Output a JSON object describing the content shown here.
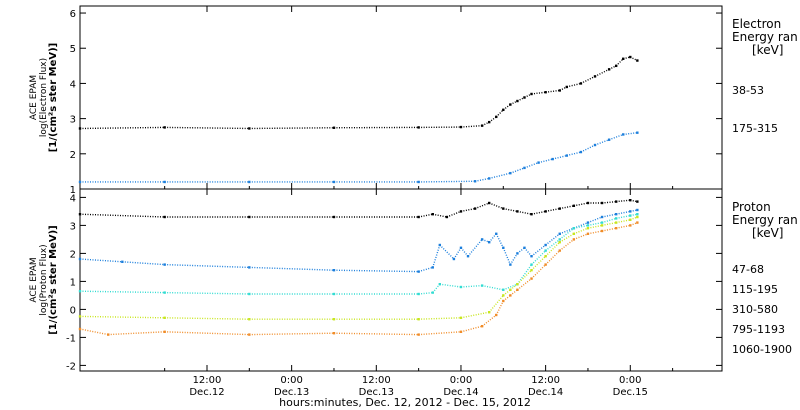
{
  "chart_data": [
    {
      "type": "scatter",
      "ylabel_lines": [
        "ACE EPAM",
        "log(Electron Flux)",
        "[1/(cm²s ster MeV)]"
      ],
      "ylim": [
        1,
        6.2
      ],
      "yticks": [
        "1",
        "2",
        "3",
        "4",
        "5",
        "6"
      ],
      "legend_title": [
        "Electron",
        "Energy ran",
        "[keV]"
      ],
      "series": [
        {
          "name": "38-53",
          "color": "#000000",
          "points": [
            [
              0,
              2.72
            ],
            [
              12,
              2.75
            ],
            [
              24,
              2.72
            ],
            [
              36,
              2.74
            ],
            [
              48,
              2.75
            ],
            [
              54,
              2.76
            ],
            [
              57,
              2.8
            ],
            [
              58,
              2.9
            ],
            [
              59,
              3.05
            ],
            [
              60,
              3.25
            ],
            [
              61,
              3.4
            ],
            [
              62,
              3.5
            ],
            [
              63,
              3.6
            ],
            [
              64,
              3.7
            ],
            [
              66,
              3.75
            ],
            [
              68,
              3.8
            ],
            [
              69,
              3.9
            ],
            [
              71,
              4.0
            ],
            [
              73,
              4.2
            ],
            [
              75,
              4.4
            ],
            [
              76,
              4.5
            ],
            [
              77,
              4.7
            ],
            [
              78,
              4.75
            ],
            [
              79,
              4.65
            ]
          ]
        },
        {
          "name": "175-315",
          "color": "#1c7fdc",
          "points": [
            [
              0,
              1.2
            ],
            [
              12,
              1.2
            ],
            [
              24,
              1.2
            ],
            [
              36,
              1.2
            ],
            [
              48,
              1.2
            ],
            [
              56,
              1.22
            ],
            [
              58,
              1.3
            ],
            [
              61,
              1.45
            ],
            [
              63,
              1.6
            ],
            [
              65,
              1.75
            ],
            [
              67,
              1.85
            ],
            [
              69,
              1.95
            ],
            [
              71,
              2.05
            ],
            [
              73,
              2.25
            ],
            [
              75,
              2.4
            ],
            [
              77,
              2.55
            ],
            [
              79,
              2.6
            ]
          ]
        }
      ]
    },
    {
      "type": "scatter",
      "ylabel_lines": [
        "ACE EPAM",
        "log(Proton Flux)",
        "[1/(cm²s ster MeV)]"
      ],
      "ylim": [
        -2.2,
        4.3
      ],
      "yticks": [
        "-2",
        "-1",
        "0",
        "1",
        "2",
        "3",
        "4"
      ],
      "legend_title": [
        "Proton",
        "Energy ran",
        "[keV]"
      ],
      "series": [
        {
          "name": "47-68",
          "color": "#000000",
          "points": [
            [
              0,
              3.4
            ],
            [
              12,
              3.3
            ],
            [
              24,
              3.3
            ],
            [
              36,
              3.3
            ],
            [
              48,
              3.3
            ],
            [
              50,
              3.4
            ],
            [
              52,
              3.3
            ],
            [
              54,
              3.5
            ],
            [
              56,
              3.6
            ],
            [
              58,
              3.8
            ],
            [
              60,
              3.6
            ],
            [
              62,
              3.5
            ],
            [
              64,
              3.4
            ],
            [
              66,
              3.5
            ],
            [
              68,
              3.6
            ],
            [
              70,
              3.7
            ],
            [
              72,
              3.8
            ],
            [
              74,
              3.8
            ],
            [
              76,
              3.85
            ],
            [
              78,
              3.9
            ],
            [
              79,
              3.85
            ]
          ]
        },
        {
          "name": "115-195",
          "color": "#1c7fdc",
          "points": [
            [
              0,
              1.8
            ],
            [
              6,
              1.7
            ],
            [
              12,
              1.6
            ],
            [
              24,
              1.5
            ],
            [
              36,
              1.4
            ],
            [
              48,
              1.35
            ],
            [
              50,
              1.5
            ],
            [
              51,
              2.3
            ],
            [
              53,
              1.8
            ],
            [
              54,
              2.2
            ],
            [
              55,
              1.9
            ],
            [
              57,
              2.5
            ],
            [
              58,
              2.4
            ],
            [
              59,
              2.7
            ],
            [
              60,
              2.2
            ],
            [
              61,
              1.6
            ],
            [
              62,
              2.0
            ],
            [
              63,
              2.2
            ],
            [
              64,
              1.9
            ],
            [
              66,
              2.3
            ],
            [
              68,
              2.7
            ],
            [
              70,
              2.9
            ],
            [
              72,
              3.1
            ],
            [
              74,
              3.3
            ],
            [
              76,
              3.4
            ],
            [
              78,
              3.5
            ],
            [
              79,
              3.55
            ]
          ]
        },
        {
          "name": "310-580",
          "color": "#33dcd2",
          "points": [
            [
              0,
              0.65
            ],
            [
              12,
              0.6
            ],
            [
              24,
              0.55
            ],
            [
              36,
              0.55
            ],
            [
              48,
              0.55
            ],
            [
              50,
              0.6
            ],
            [
              51,
              0.9
            ],
            [
              54,
              0.8
            ],
            [
              57,
              0.85
            ],
            [
              60,
              0.7
            ],
            [
              62,
              0.9
            ],
            [
              64,
              1.6
            ],
            [
              66,
              2.1
            ],
            [
              68,
              2.5
            ],
            [
              70,
              2.9
            ],
            [
              72,
              3.0
            ],
            [
              74,
              3.1
            ],
            [
              76,
              3.25
            ],
            [
              78,
              3.35
            ],
            [
              79,
              3.4
            ]
          ]
        },
        {
          "name": "795-1193",
          "color": "#c8e61e",
          "points": [
            [
              0,
              -0.25
            ],
            [
              12,
              -0.3
            ],
            [
              24,
              -0.35
            ],
            [
              36,
              -0.35
            ],
            [
              48,
              -0.35
            ],
            [
              54,
              -0.3
            ],
            [
              58,
              -0.1
            ],
            [
              60,
              0.5
            ],
            [
              61,
              0.7
            ],
            [
              62,
              0.9
            ],
            [
              64,
              1.4
            ],
            [
              66,
              1.9
            ],
            [
              68,
              2.4
            ],
            [
              70,
              2.7
            ],
            [
              72,
              2.9
            ],
            [
              74,
              3.0
            ],
            [
              76,
              3.1
            ],
            [
              78,
              3.2
            ],
            [
              79,
              3.3
            ]
          ]
        },
        {
          "name": "1060-1900",
          "color": "#f08c28",
          "points": [
            [
              0,
              -0.7
            ],
            [
              4,
              -0.9
            ],
            [
              12,
              -0.8
            ],
            [
              24,
              -0.9
            ],
            [
              36,
              -0.85
            ],
            [
              48,
              -0.9
            ],
            [
              54,
              -0.8
            ],
            [
              57,
              -0.6
            ],
            [
              59,
              -0.2
            ],
            [
              60,
              0.3
            ],
            [
              61,
              0.5
            ],
            [
              62,
              0.7
            ],
            [
              64,
              1.1
            ],
            [
              66,
              1.6
            ],
            [
              68,
              2.1
            ],
            [
              70,
              2.5
            ],
            [
              72,
              2.7
            ],
            [
              74,
              2.8
            ],
            [
              76,
              2.9
            ],
            [
              78,
              3.0
            ],
            [
              79,
              3.1
            ]
          ]
        }
      ]
    }
  ],
  "x_axis": {
    "xlim_hours": [
      0,
      91
    ],
    "ticks": [
      {
        "hour": 18,
        "time": "12:00",
        "date": "Dec.12"
      },
      {
        "hour": 30,
        "time": "0:00",
        "date": "Dec.13"
      },
      {
        "hour": 42,
        "time": "12:00",
        "date": "Dec.13"
      },
      {
        "hour": 54,
        "time": "0:00",
        "date": "Dec.14"
      },
      {
        "hour": 66,
        "time": "12:00",
        "date": "Dec.14"
      },
      {
        "hour": 78,
        "time": "0:00",
        "date": "Dec.15"
      }
    ],
    "label": "hours:minutes, Dec. 12, 2012 - Dec. 15, 2012"
  }
}
